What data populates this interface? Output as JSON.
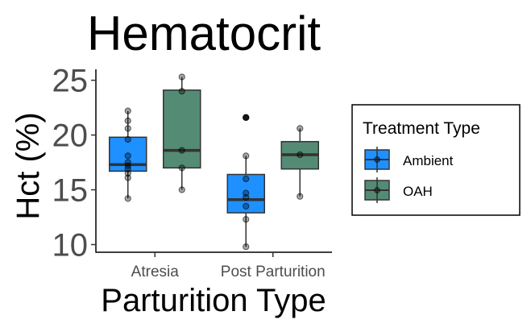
{
  "chart_data": {
    "type": "box",
    "title": "Hematocrit",
    "xlabel": "Parturition Type",
    "ylabel": "Hct (%)",
    "ylim": [
      9.3,
      26
    ],
    "yticks": [
      10,
      15,
      20,
      25
    ],
    "categories": [
      "Atresia",
      "Post Parturition"
    ],
    "legend": {
      "title": "Treatment Type",
      "position": "right",
      "entries": [
        {
          "name": "Ambient",
          "color": "#1e90ff"
        },
        {
          "name": "OAH",
          "color": "#548b74"
        }
      ]
    },
    "groups": [
      {
        "category": "Atresia",
        "treatment": "Ambient",
        "color": "#1e90ff",
        "whisker_low": 14.2,
        "q1": 16.7,
        "median": 17.3,
        "q3": 19.8,
        "whisker_high": 22.2,
        "outliers": [],
        "points": [
          22.2,
          21.3,
          20.6,
          19.6,
          18.1,
          17.5,
          17.2,
          16.9,
          16.5,
          16.1,
          14.2
        ]
      },
      {
        "category": "Atresia",
        "treatment": "OAH",
        "color": "#548b74",
        "whisker_low": 15.0,
        "q1": 17.0,
        "median": 18.6,
        "q3": 24.1,
        "whisker_high": 25.3,
        "outliers": [],
        "points": [
          25.3,
          24.0,
          18.6,
          17.0,
          15.0
        ]
      },
      {
        "category": "Post Parturition",
        "treatment": "Ambient",
        "color": "#1e90ff",
        "whisker_low": 9.8,
        "q1": 12.9,
        "median": 14.1,
        "q3": 16.4,
        "whisker_high": 18.1,
        "outliers": [
          21.6
        ],
        "points": [
          21.6,
          18.1,
          16.0,
          14.7,
          14.3,
          13.5,
          12.3,
          9.8
        ]
      },
      {
        "category": "Post Parturition",
        "treatment": "OAH",
        "color": "#548b74",
        "whisker_low": 14.4,
        "q1": 16.9,
        "median": 18.2,
        "q3": 19.4,
        "whisker_high": 20.6,
        "outliers": [],
        "points": [
          20.6,
          18.2,
          14.4
        ]
      }
    ]
  }
}
